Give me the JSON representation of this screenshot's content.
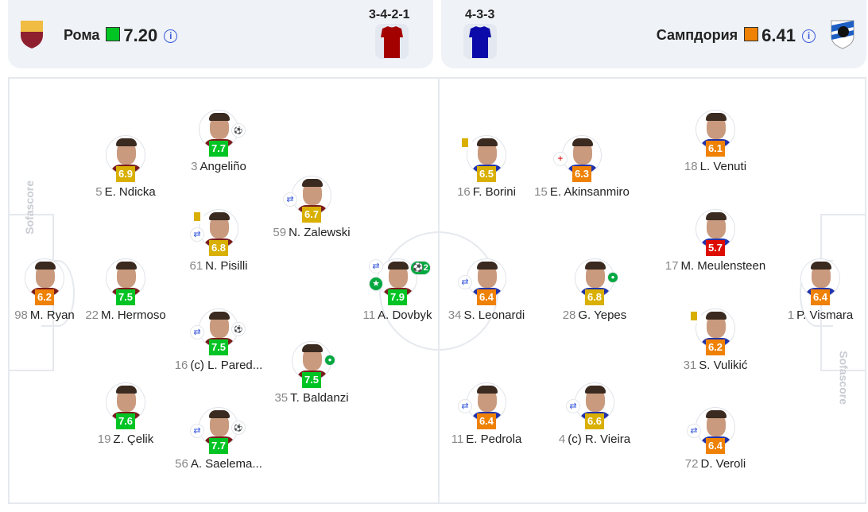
{
  "home": {
    "name": "Рома",
    "rating": "7.20",
    "rating_color": "#00c424",
    "formation": "3-4-2-1",
    "shirt_color": "#a30000",
    "info_icon": "info-icon",
    "crest": "ROMA"
  },
  "away": {
    "name": "Сампдория",
    "rating": "6.41",
    "rating_color": "#ef8104",
    "formation": "4-3-3",
    "shirt_color": "#0c0aa8",
    "info_icon": "info-icon"
  },
  "watermark": "Sofascore",
  "rating_colors": {
    "green": "#00c424",
    "yellow": "#d9af00",
    "orange": "#ef8104",
    "red": "#dc0c00"
  },
  "players": [
    {
      "team": "home",
      "number": "98",
      "name": "M. Ryan",
      "rating": "6.2",
      "color": "orange",
      "icons": []
    },
    {
      "team": "home",
      "number": "22",
      "name": "M. Hermoso",
      "rating": "7.5",
      "color": "green",
      "icons": []
    },
    {
      "team": "home",
      "number": "5",
      "name": "E. Ndicka",
      "rating": "6.9",
      "color": "yellow",
      "icons": []
    },
    {
      "team": "home",
      "number": "19",
      "name": "Z. Çelik",
      "rating": "7.6",
      "color": "green",
      "icons": []
    },
    {
      "team": "home",
      "number": "3",
      "name": "Angeliño",
      "rating": "7.7",
      "color": "green",
      "icons": [
        "boot-icon"
      ]
    },
    {
      "team": "home",
      "number": "61",
      "name": "N. Pisilli",
      "rating": "6.8",
      "color": "yellow",
      "icons": [
        "yellow-card-icon",
        "substitution-icon"
      ]
    },
    {
      "team": "home",
      "number": "16",
      "name": "(c) L. Pared...",
      "rating": "7.5",
      "color": "green",
      "icons": [
        "substitution-icon",
        "boot-icon"
      ]
    },
    {
      "team": "home",
      "number": "56",
      "name": "A. Saelema...",
      "rating": "7.7",
      "color": "green",
      "icons": [
        "substitution-icon",
        "boot-icon"
      ]
    },
    {
      "team": "home",
      "number": "59",
      "name": "N. Zalewski",
      "rating": "6.7",
      "color": "yellow",
      "icons": [
        "substitution-icon"
      ]
    },
    {
      "team": "home",
      "number": "35",
      "name": "T. Baldanzi",
      "rating": "7.5",
      "color": "green",
      "icons": [
        "ball-icon"
      ]
    },
    {
      "team": "home",
      "number": "11",
      "name": "A. Dovbyk",
      "rating": "7.9",
      "color": "green",
      "icons": [
        "substitution-icon",
        "star-icon",
        "goals-icon"
      ],
      "goals": "2"
    },
    {
      "team": "away",
      "number": "16",
      "name": "F. Borini",
      "rating": "6.5",
      "color": "yellow",
      "icons": [
        "yellow-card-icon"
      ]
    },
    {
      "team": "away",
      "number": "15",
      "name": "E. Akinsanmiro",
      "rating": "6.3",
      "color": "orange",
      "icons": [
        "sub-in-icon"
      ]
    },
    {
      "team": "away",
      "number": "18",
      "name": "L. Venuti",
      "rating": "6.1",
      "color": "orange",
      "icons": []
    },
    {
      "team": "away",
      "number": "17",
      "name": "M. Meulensteen",
      "rating": "5.7",
      "color": "red",
      "icons": []
    },
    {
      "team": "away",
      "number": "34",
      "name": "S. Leonardi",
      "rating": "6.4",
      "color": "orange",
      "icons": [
        "substitution-icon"
      ]
    },
    {
      "team": "away",
      "number": "28",
      "name": "G. Yepes",
      "rating": "6.8",
      "color": "yellow",
      "icons": [
        "ball-icon"
      ]
    },
    {
      "team": "away",
      "number": "31",
      "name": "S. Vulikić",
      "rating": "6.2",
      "color": "orange",
      "icons": [
        "yellow-card-icon"
      ]
    },
    {
      "team": "away",
      "number": "1",
      "name": "P. Vismara",
      "rating": "6.4",
      "color": "orange",
      "icons": []
    },
    {
      "team": "away",
      "number": "11",
      "name": "E. Pedrola",
      "rating": "6.4",
      "color": "orange",
      "icons": [
        "substitution-icon"
      ]
    },
    {
      "team": "away",
      "number": "4",
      "name": "(c) R. Vieira",
      "rating": "6.6",
      "color": "yellow",
      "icons": [
        "substitution-icon"
      ]
    },
    {
      "team": "away",
      "number": "72",
      "name": "D. Veroli",
      "rating": "6.4",
      "color": "orange",
      "icons": [
        "substitution-icon"
      ]
    }
  ]
}
